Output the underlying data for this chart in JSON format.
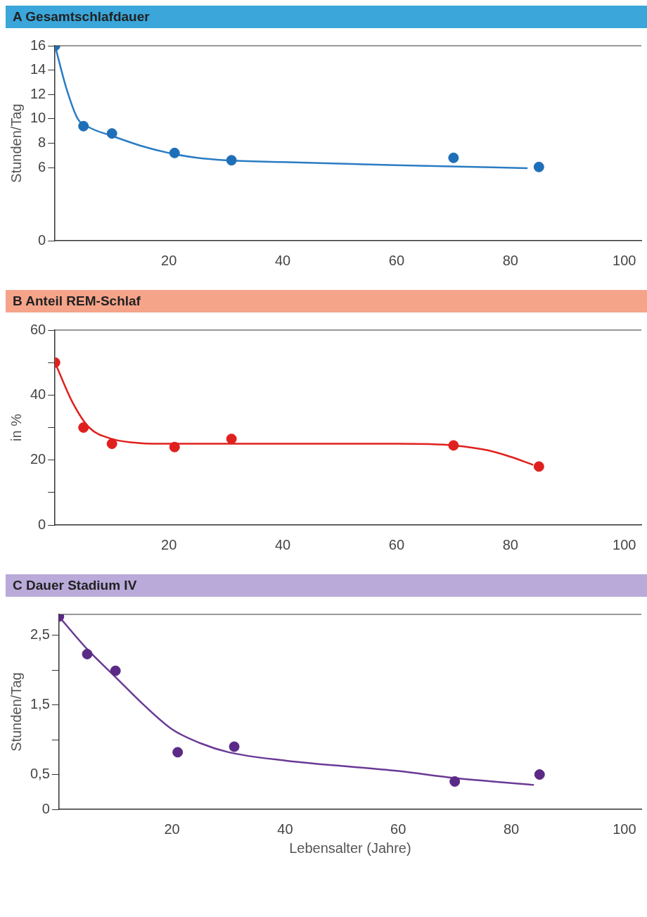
{
  "chart_data": [
    {
      "type": "scatter",
      "title": "A  Gesamtschlafdauer",
      "ylabel": "Stunden/Tag",
      "xlim": [
        0,
        103
      ],
      "xticks": [
        20,
        40,
        60,
        80,
        100
      ],
      "ylim": [
        0,
        16
      ],
      "yticks": [
        0,
        6,
        8,
        10,
        12,
        14,
        16
      ],
      "grid": false,
      "legend": false,
      "series": [
        {
          "marker": "circle",
          "color": "#1f6fb8",
          "x": [
            0,
            5,
            10,
            21,
            31,
            70,
            85
          ],
          "values": [
            16,
            9.4,
            8.8,
            7.2,
            6.6,
            6.8,
            6.05
          ]
        },
        {
          "type": "line",
          "marker": "none",
          "color": "#2a7cc4",
          "x": [
            0,
            2,
            4,
            6,
            10,
            15,
            20,
            25,
            30,
            40,
            60,
            83
          ],
          "values": [
            16,
            12.5,
            10,
            9.3,
            8.6,
            7.8,
            7.2,
            6.8,
            6.6,
            6.45,
            6.2,
            5.95
          ]
        }
      ]
    },
    {
      "type": "scatter",
      "title": "B  Anteil REM-Schlaf",
      "ylabel": "in %",
      "xlim": [
        0,
        103
      ],
      "xticks": [
        20,
        40,
        60,
        80,
        100
      ],
      "ylim": [
        0,
        60
      ],
      "yticks": [
        0,
        {
          "value": 10,
          "label": null
        },
        20,
        {
          "value": 30,
          "label": null
        },
        40,
        {
          "value": 50,
          "label": null
        },
        60
      ],
      "grid": false,
      "legend": false,
      "series": [
        {
          "marker": "circle",
          "color": "#e0201e",
          "x": [
            0,
            5,
            10,
            21,
            31,
            70,
            85
          ],
          "values": [
            50,
            30,
            25,
            24,
            26.5,
            24.5,
            18
          ]
        },
        {
          "type": "line",
          "marker": "none",
          "color": "#e0201e",
          "x": [
            0,
            3,
            6,
            10,
            15,
            20,
            40,
            60,
            70,
            76,
            80,
            84
          ],
          "values": [
            50,
            38,
            30,
            26.5,
            25.2,
            25,
            25,
            25,
            24.5,
            23,
            21,
            18.5
          ]
        }
      ]
    },
    {
      "type": "scatter",
      "title": "C  Dauer Stadium IV",
      "ylabel": "Stunden/Tag",
      "xlabel": "Lebensalter (Jahre)",
      "xlim": [
        0,
        103
      ],
      "xticks": [
        20,
        40,
        60,
        80,
        100
      ],
      "ylim": [
        0,
        2.8
      ],
      "yticks": [
        0,
        {
          "value": 0.5,
          "label": "0,5"
        },
        {
          "value": 1,
          "label": null
        },
        {
          "value": 1.5,
          "label": "1,5"
        },
        {
          "value": 2,
          "label": null
        },
        {
          "value": 2.5,
          "label": "2,5"
        }
      ],
      "grid": false,
      "legend": false,
      "series": [
        {
          "marker": "circle",
          "color": "#5b2a86",
          "x": [
            0,
            5,
            10,
            21,
            31,
            70,
            85
          ],
          "values": [
            2.77,
            2.23,
            1.99,
            0.82,
            0.9,
            0.4,
            0.5
          ]
        },
        {
          "type": "line",
          "marker": "none",
          "color": "#6a3a96",
          "x": [
            0,
            5,
            10,
            15,
            20,
            25,
            30,
            40,
            60,
            70,
            84
          ],
          "values": [
            2.77,
            2.3,
            1.9,
            1.5,
            1.15,
            0.95,
            0.82,
            0.7,
            0.55,
            0.45,
            0.35
          ]
        }
      ]
    }
  ]
}
